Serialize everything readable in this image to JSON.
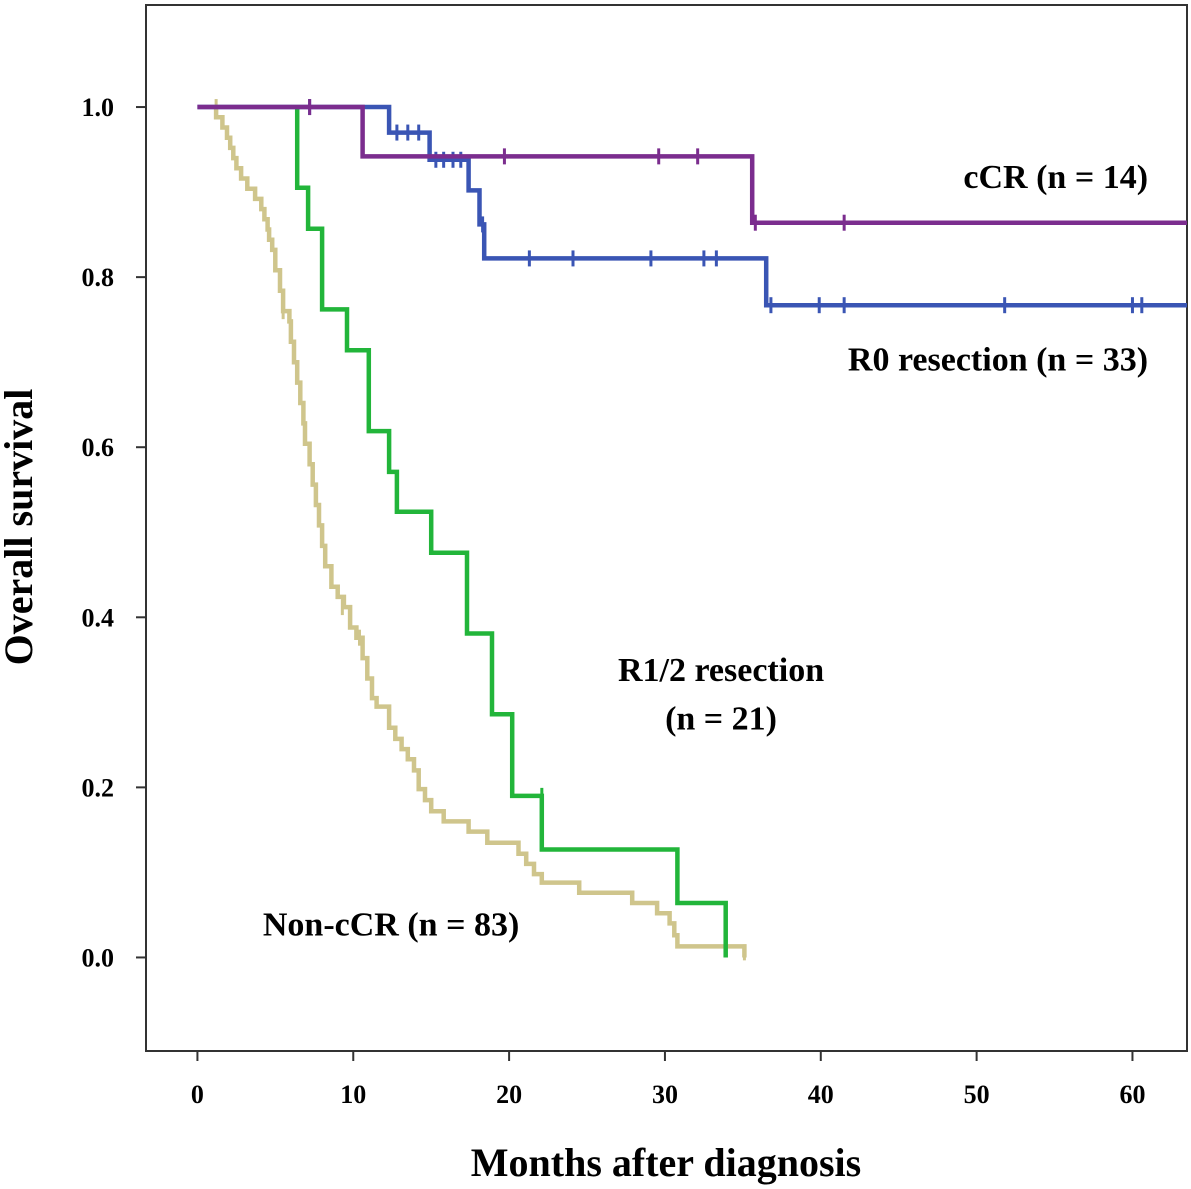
{
  "chart_data": {
    "type": "line",
    "step": true,
    "xlabel": "Months after diagnosis",
    "ylabel": "Overall survival",
    "xlim": [
      -3.3,
      63.5
    ],
    "ylim": [
      -0.11,
      1.12
    ],
    "xticks": [
      "0",
      "10",
      "20",
      "30",
      "40",
      "50",
      "60"
    ],
    "xtick_values": [
      0,
      10,
      20,
      30,
      40,
      50,
      60
    ],
    "yticks": [
      "0.0",
      "0.2",
      "0.4",
      "0.6",
      "0.8",
      "1.0"
    ],
    "ytick_values": [
      0.0,
      0.2,
      0.4,
      0.6,
      0.8,
      1.0
    ],
    "grid": false,
    "annotations": [
      {
        "text": "cCR (n = 14)",
        "x": 61,
        "y": 0.905,
        "anchor": "end"
      },
      {
        "text": "R0 resection  (n = 33)",
        "x": 61,
        "y": 0.69,
        "anchor": "end"
      },
      {
        "text": "R1/2 resection",
        "x": 33.6,
        "y": 0.325,
        "anchor": "middle"
      },
      {
        "text": "(n = 21)",
        "x": 33.6,
        "y": 0.268,
        "anchor": "middle"
      },
      {
        "text": "Non-cCR (n = 83)",
        "x": 4.2,
        "y": 0.026,
        "anchor": "start"
      }
    ],
    "series": [
      {
        "color": "#7b2d8e",
        "points": [
          [
            0,
            1.0
          ],
          [
            10.6,
            1.0
          ],
          [
            10.6,
            0.942
          ],
          [
            35.6,
            0.942
          ],
          [
            35.6,
            0.864
          ],
          [
            63.5,
            0.864
          ]
        ],
        "censors": [
          [
            7.2,
            1.0
          ],
          [
            19.7,
            0.942
          ],
          [
            29.6,
            0.942
          ],
          [
            32.1,
            0.942
          ],
          [
            35.8,
            0.864
          ],
          [
            41.5,
            0.864
          ]
        ]
      },
      {
        "color": "#3a55b4",
        "points": [
          [
            0,
            1.0
          ],
          [
            12.3,
            1.0
          ],
          [
            12.3,
            0.97
          ],
          [
            14.9,
            0.97
          ],
          [
            14.9,
            0.938
          ],
          [
            17.4,
            0.938
          ],
          [
            17.4,
            0.902
          ],
          [
            18.1,
            0.902
          ],
          [
            18.1,
            0.862
          ],
          [
            18.4,
            0.862
          ],
          [
            18.4,
            0.822
          ],
          [
            36.5,
            0.822
          ],
          [
            36.5,
            0.767
          ],
          [
            63.5,
            0.767
          ]
        ],
        "censors": [
          [
            7.2,
            1.0
          ],
          [
            12.8,
            0.97
          ],
          [
            13.5,
            0.97
          ],
          [
            14.2,
            0.97
          ],
          [
            15.3,
            0.938
          ],
          [
            15.8,
            0.938
          ],
          [
            16.4,
            0.938
          ],
          [
            16.9,
            0.938
          ],
          [
            18.3,
            0.862
          ],
          [
            21.3,
            0.822
          ],
          [
            24.1,
            0.822
          ],
          [
            29.1,
            0.822
          ],
          [
            32.5,
            0.822
          ],
          [
            33.3,
            0.822
          ],
          [
            36.8,
            0.767
          ],
          [
            39.9,
            0.767
          ],
          [
            41.5,
            0.767
          ],
          [
            51.8,
            0.767
          ],
          [
            60.0,
            0.767
          ],
          [
            60.6,
            0.767
          ]
        ]
      },
      {
        "color": "#22b53a",
        "points": [
          [
            6.4,
            1.0
          ],
          [
            6.4,
            0.905
          ],
          [
            7.1,
            0.905
          ],
          [
            7.1,
            0.857
          ],
          [
            8.0,
            0.857
          ],
          [
            8.0,
            0.762
          ],
          [
            9.6,
            0.762
          ],
          [
            9.6,
            0.714
          ],
          [
            11.0,
            0.714
          ],
          [
            11.0,
            0.619
          ],
          [
            12.3,
            0.619
          ],
          [
            12.3,
            0.571
          ],
          [
            12.8,
            0.571
          ],
          [
            12.8,
            0.524
          ],
          [
            15.0,
            0.524
          ],
          [
            15.0,
            0.476
          ],
          [
            17.3,
            0.476
          ],
          [
            17.3,
            0.381
          ],
          [
            18.9,
            0.381
          ],
          [
            18.9,
            0.286
          ],
          [
            20.2,
            0.286
          ],
          [
            20.2,
            0.19
          ],
          [
            22.1,
            0.19
          ],
          [
            22.1,
            0.127
          ],
          [
            30.8,
            0.127
          ],
          [
            30.8,
            0.064
          ],
          [
            33.9,
            0.064
          ],
          [
            33.9,
            0.0
          ]
        ],
        "censors": [
          [
            22.1,
            0.19
          ]
        ]
      },
      {
        "color": "#cfc58c",
        "points": [
          [
            1.2,
            1.0
          ],
          [
            1.2,
            0.988
          ],
          [
            1.6,
            0.988
          ],
          [
            1.6,
            0.976
          ],
          [
            1.9,
            0.976
          ],
          [
            1.9,
            0.964
          ],
          [
            2.1,
            0.964
          ],
          [
            2.1,
            0.952
          ],
          [
            2.3,
            0.952
          ],
          [
            2.3,
            0.94
          ],
          [
            2.5,
            0.94
          ],
          [
            2.5,
            0.928
          ],
          [
            2.8,
            0.928
          ],
          [
            2.8,
            0.916
          ],
          [
            3.2,
            0.916
          ],
          [
            3.2,
            0.904
          ],
          [
            3.7,
            0.904
          ],
          [
            3.7,
            0.892
          ],
          [
            4.1,
            0.892
          ],
          [
            4.1,
            0.88
          ],
          [
            4.3,
            0.88
          ],
          [
            4.3,
            0.868
          ],
          [
            4.5,
            0.868
          ],
          [
            4.5,
            0.856
          ],
          [
            4.6,
            0.856
          ],
          [
            4.6,
            0.844
          ],
          [
            4.8,
            0.844
          ],
          [
            4.8,
            0.832
          ],
          [
            5.0,
            0.832
          ],
          [
            5.0,
            0.808
          ],
          [
            5.3,
            0.808
          ],
          [
            5.3,
            0.784
          ],
          [
            5.5,
            0.784
          ],
          [
            5.5,
            0.76
          ],
          [
            5.9,
            0.76
          ],
          [
            5.9,
            0.748
          ],
          [
            6.0,
            0.748
          ],
          [
            6.0,
            0.724
          ],
          [
            6.2,
            0.724
          ],
          [
            6.2,
            0.7
          ],
          [
            6.4,
            0.7
          ],
          [
            6.4,
            0.676
          ],
          [
            6.6,
            0.676
          ],
          [
            6.6,
            0.652
          ],
          [
            6.8,
            0.652
          ],
          [
            6.8,
            0.628
          ],
          [
            6.9,
            0.628
          ],
          [
            6.9,
            0.604
          ],
          [
            7.2,
            0.604
          ],
          [
            7.2,
            0.58
          ],
          [
            7.4,
            0.58
          ],
          [
            7.4,
            0.556
          ],
          [
            7.6,
            0.556
          ],
          [
            7.6,
            0.532
          ],
          [
            7.8,
            0.532
          ],
          [
            7.8,
            0.508
          ],
          [
            8.0,
            0.508
          ],
          [
            8.0,
            0.484
          ],
          [
            8.2,
            0.484
          ],
          [
            8.2,
            0.46
          ],
          [
            8.6,
            0.46
          ],
          [
            8.6,
            0.436
          ],
          [
            9.0,
            0.436
          ],
          [
            9.0,
            0.424
          ],
          [
            9.4,
            0.424
          ],
          [
            9.4,
            0.412
          ],
          [
            9.8,
            0.412
          ],
          [
            9.8,
            0.388
          ],
          [
            10.2,
            0.388
          ],
          [
            10.2,
            0.376
          ],
          [
            10.6,
            0.376
          ],
          [
            10.6,
            0.352
          ],
          [
            10.9,
            0.352
          ],
          [
            10.9,
            0.328
          ],
          [
            11.2,
            0.328
          ],
          [
            11.2,
            0.305
          ],
          [
            11.5,
            0.305
          ],
          [
            11.5,
            0.295
          ],
          [
            12.3,
            0.295
          ],
          [
            12.3,
            0.27
          ],
          [
            12.7,
            0.27
          ],
          [
            12.7,
            0.257
          ],
          [
            13.1,
            0.257
          ],
          [
            13.1,
            0.245
          ],
          [
            13.5,
            0.245
          ],
          [
            13.5,
            0.233
          ],
          [
            13.9,
            0.233
          ],
          [
            13.9,
            0.22
          ],
          [
            14.2,
            0.22
          ],
          [
            14.2,
            0.198
          ],
          [
            14.6,
            0.198
          ],
          [
            14.6,
            0.185
          ],
          [
            15.0,
            0.185
          ],
          [
            15.0,
            0.172
          ],
          [
            15.8,
            0.172
          ],
          [
            15.8,
            0.16
          ],
          [
            17.4,
            0.16
          ],
          [
            17.4,
            0.148
          ],
          [
            18.6,
            0.148
          ],
          [
            18.6,
            0.135
          ],
          [
            20.6,
            0.135
          ],
          [
            20.6,
            0.122
          ],
          [
            21.1,
            0.122
          ],
          [
            21.1,
            0.11
          ],
          [
            21.6,
            0.11
          ],
          [
            21.6,
            0.098
          ],
          [
            22.1,
            0.098
          ],
          [
            22.1,
            0.088
          ],
          [
            24.5,
            0.088
          ],
          [
            24.5,
            0.076
          ],
          [
            27.9,
            0.076
          ],
          [
            27.9,
            0.064
          ],
          [
            29.5,
            0.064
          ],
          [
            29.5,
            0.052
          ],
          [
            30.3,
            0.052
          ],
          [
            30.3,
            0.04
          ],
          [
            30.6,
            0.04
          ],
          [
            30.6,
            0.026
          ],
          [
            30.8,
            0.026
          ],
          [
            30.8,
            0.013
          ],
          [
            35.1,
            0.013
          ],
          [
            35.1,
            0.0
          ]
        ],
        "censors": [
          [
            1.2,
            1.0
          ],
          [
            5.5,
            0.76
          ],
          [
            9.3,
            0.412
          ],
          [
            10.4,
            0.376
          ],
          [
            35.1,
            0.006
          ]
        ]
      }
    ]
  }
}
